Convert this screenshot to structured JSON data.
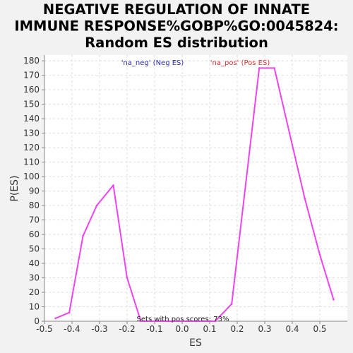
{
  "chart_data": {
    "type": "line",
    "title": [
      "NEGATIVE REGULATION OF INNATE",
      "IMMUNE RESPONSE%GOBP%GO:0045824:",
      "Random ES distribution"
    ],
    "xlabel": "ES",
    "ylabel": "P(ES)",
    "xlim": [
      -0.5,
      0.6
    ],
    "ylim": [
      0,
      184
    ],
    "x_ticks": [
      -0.5,
      -0.4,
      -0.3,
      -0.2,
      -0.1,
      0.0,
      0.1,
      0.2,
      0.3,
      0.4,
      0.5
    ],
    "x_tick_labels": [
      "-0.5",
      "-0.4",
      "-0.3",
      "-0.2",
      "-0.1",
      "0.0",
      "0.1",
      "0.2",
      "0.3",
      "0.4",
      "0.5"
    ],
    "y_ticks": [
      0,
      10,
      20,
      30,
      40,
      50,
      60,
      70,
      80,
      90,
      100,
      110,
      120,
      130,
      140,
      150,
      160,
      170,
      180
    ],
    "y_tick_labels": [
      "0",
      "10",
      "20",
      "30",
      "40",
      "50",
      "60",
      "70",
      "80",
      "90",
      "100",
      "110",
      "120",
      "130",
      "140",
      "150",
      "160",
      "170",
      "180"
    ],
    "grid": true,
    "legend": [
      {
        "label": "'na_neg' (Neg ES)",
        "color": "#2a2ab8"
      },
      {
        "label": "'na_pos' (Pos ES)",
        "color": "#e03030"
      }
    ],
    "annotation": "Sets with pos scores: 73%",
    "series": [
      {
        "color": "#ee44ee",
        "points": [
          [
            -0.46,
            2
          ],
          [
            -0.41,
            6
          ],
          [
            -0.36,
            59
          ],
          [
            -0.31,
            80
          ],
          [
            -0.25,
            94
          ],
          [
            -0.2,
            30
          ],
          [
            -0.15,
            0
          ],
          [
            -0.1,
            0
          ],
          [
            -0.05,
            0
          ],
          [
            0.0,
            0
          ],
          [
            0.05,
            0
          ],
          [
            0.12,
            0
          ],
          [
            0.18,
            12
          ],
          [
            0.28,
            175
          ],
          [
            0.335,
            175
          ],
          [
            0.39,
            130
          ],
          [
            0.445,
            85
          ],
          [
            0.5,
            46
          ],
          [
            0.55,
            15
          ]
        ]
      }
    ]
  }
}
